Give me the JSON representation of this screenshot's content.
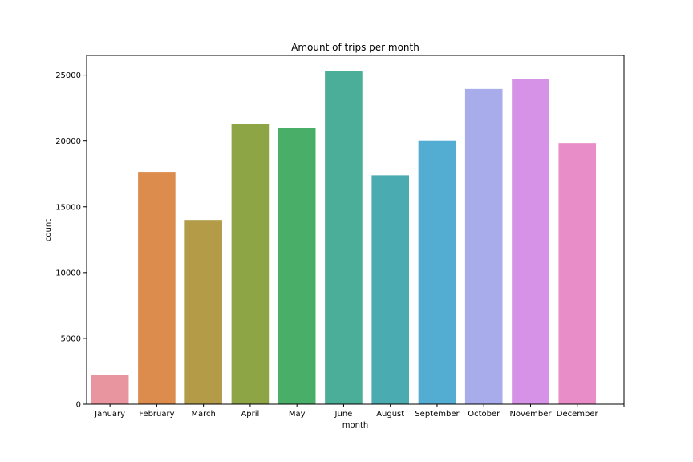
{
  "chart_data": {
    "type": "bar",
    "title": "Amount of trips per month",
    "xlabel": "month",
    "ylabel": "count",
    "ylim": [
      0,
      26500
    ],
    "yticks": [
      0,
      5000,
      10000,
      15000,
      20000,
      25000
    ],
    "categories": [
      "January",
      "February",
      "March",
      "April",
      "May",
      "June",
      "August",
      "September",
      "October",
      "November",
      "December"
    ],
    "values": [
      2200,
      17600,
      14000,
      21300,
      21000,
      25300,
      17400,
      20000,
      23950,
      24700,
      19850
    ],
    "colors": [
      "#e8959f",
      "#dc8d4e",
      "#b39b48",
      "#8ea546",
      "#48ae68",
      "#4aae98",
      "#4aabb0",
      "#53acd2",
      "#a8aceb",
      "#d592e6",
      "#e88dc7"
    ],
    "grid": false,
    "legend": "none"
  }
}
